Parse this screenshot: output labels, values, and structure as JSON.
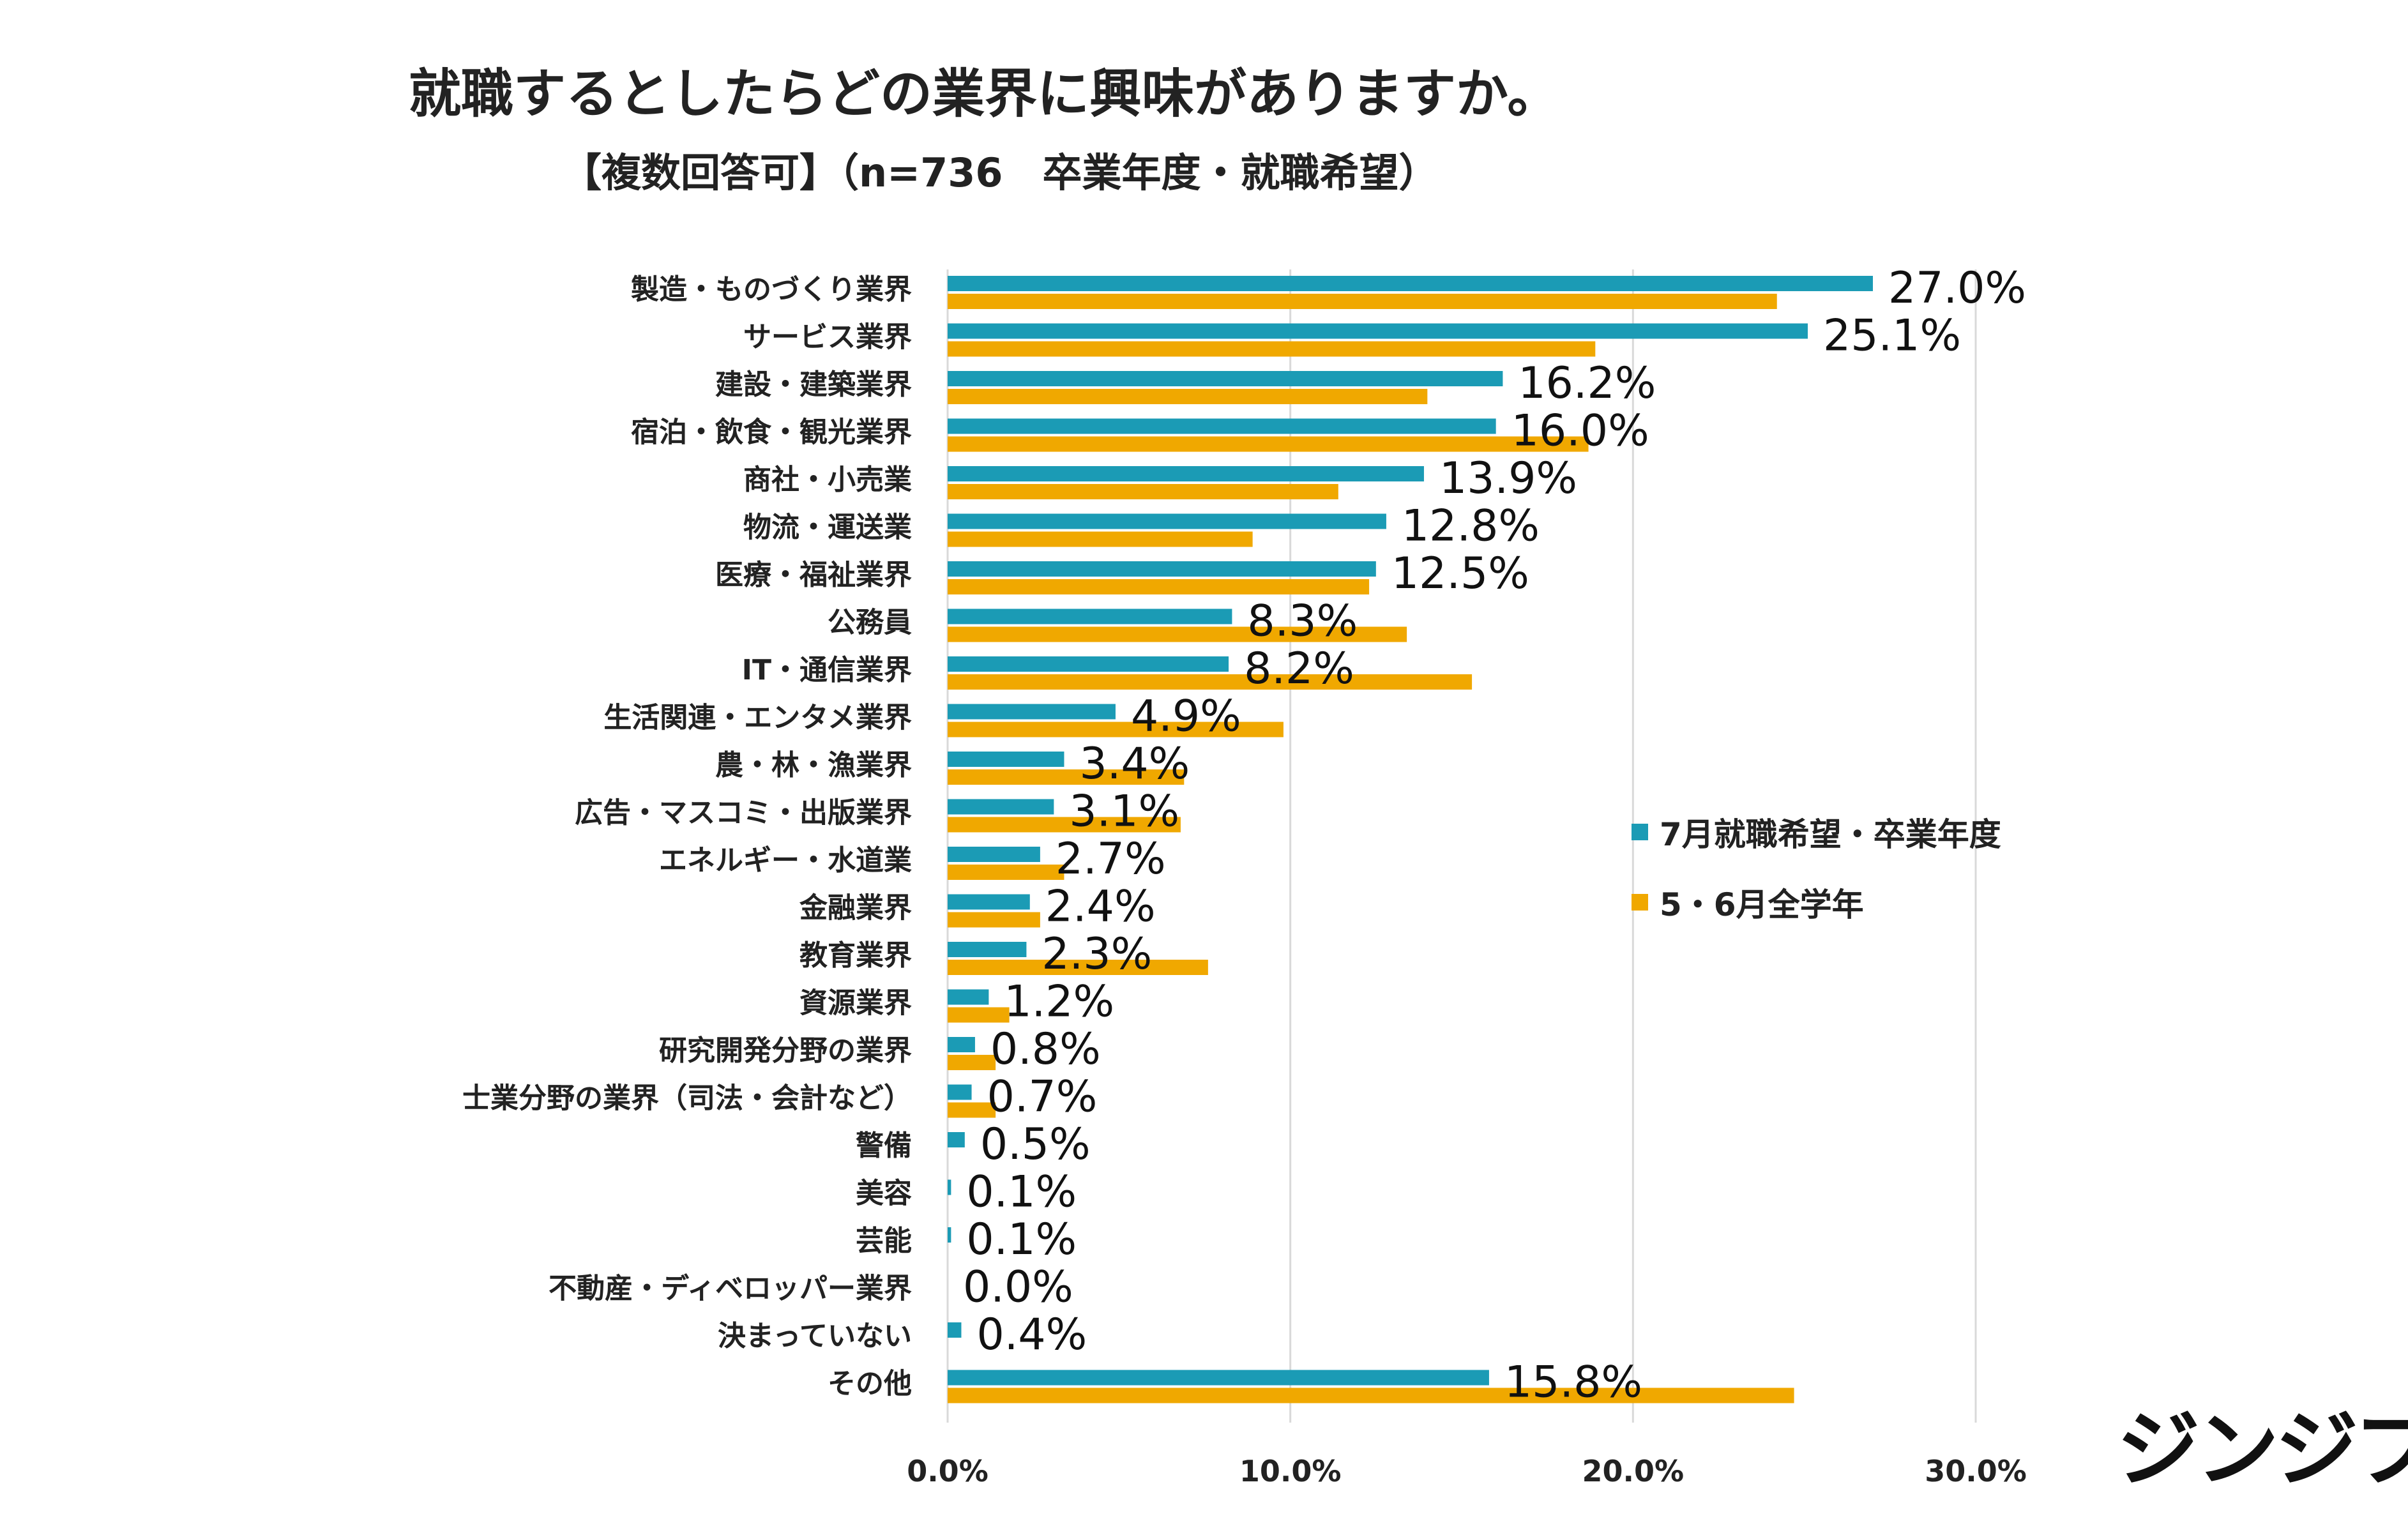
{
  "title": "就職するとしたらどの業界に興味がありますか。",
  "subtitle": "【複数回答可】（n=736　卒業年度・就職希望）",
  "logo_text": "ジンジブ",
  "colors": {
    "series1": "#1b9bb5",
    "series2": "#f0a800",
    "grid": "#d9d9d9",
    "text": "#222222"
  },
  "legend": {
    "series1_label": "7月就職希望・卒業年度",
    "series2_label": "5・6月全学年"
  },
  "chart_data": {
    "type": "bar",
    "orientation": "horizontal",
    "title": "就職するとしたらどの業界に興味がありますか。",
    "subtitle": "【複数回答可】（n=736　卒業年度・就職希望）",
    "xlim": [
      0,
      30
    ],
    "xticks": [
      "0.0%",
      "10.0%",
      "20.0%",
      "30.0%"
    ],
    "grid": true,
    "legend_position": "right",
    "categories": [
      "製造・ものづくり業界",
      "サービス業界",
      "建設・建築業界",
      "宿泊・飲食・観光業界",
      "商社・小売業",
      "物流・運送業",
      "医療・福祉業界",
      "公務員",
      "IT・通信業界",
      "生活関連・エンタメ業界",
      "農・林・漁業界",
      "広告・マスコミ・出版業界",
      "エネルギー・水道業",
      "金融業界",
      "教育業界",
      "資源業界",
      "研究開発分野の業界",
      "士業分野の業界（司法・会計など）",
      "警備",
      "美容",
      "芸能",
      "不動産・ディベロッパー業界",
      "決まっていない",
      "その他"
    ],
    "series": [
      {
        "name": "7月就職希望・卒業年度",
        "values": [
          27.0,
          25.1,
          16.2,
          16.0,
          13.9,
          12.8,
          12.5,
          8.3,
          8.2,
          4.9,
          3.4,
          3.1,
          2.7,
          2.4,
          2.3,
          1.2,
          0.8,
          0.7,
          0.5,
          0.1,
          0.1,
          0.0,
          0.4,
          15.8
        ],
        "labels": [
          "27.0%",
          "25.1%",
          "16.2%",
          "16.0%",
          "13.9%",
          "12.8%",
          "12.5%",
          "8.3%",
          "8.2%",
          "4.9%",
          "3.4%",
          "3.1%",
          "2.7%",
          "2.4%",
          "2.3%",
          "1.2%",
          "0.8%",
          "0.7%",
          "0.5%",
          "0.1%",
          "0.1%",
          "0.0%",
          "0.4%",
          "15.8%"
        ]
      },
      {
        "name": "5・6月全学年",
        "values": [
          24.2,
          18.9,
          14.0,
          18.7,
          11.4,
          8.9,
          12.3,
          13.4,
          15.3,
          9.8,
          6.9,
          6.8,
          3.4,
          2.7,
          7.6,
          1.8,
          1.4,
          1.4,
          null,
          null,
          null,
          null,
          null,
          24.7
        ]
      }
    ]
  }
}
